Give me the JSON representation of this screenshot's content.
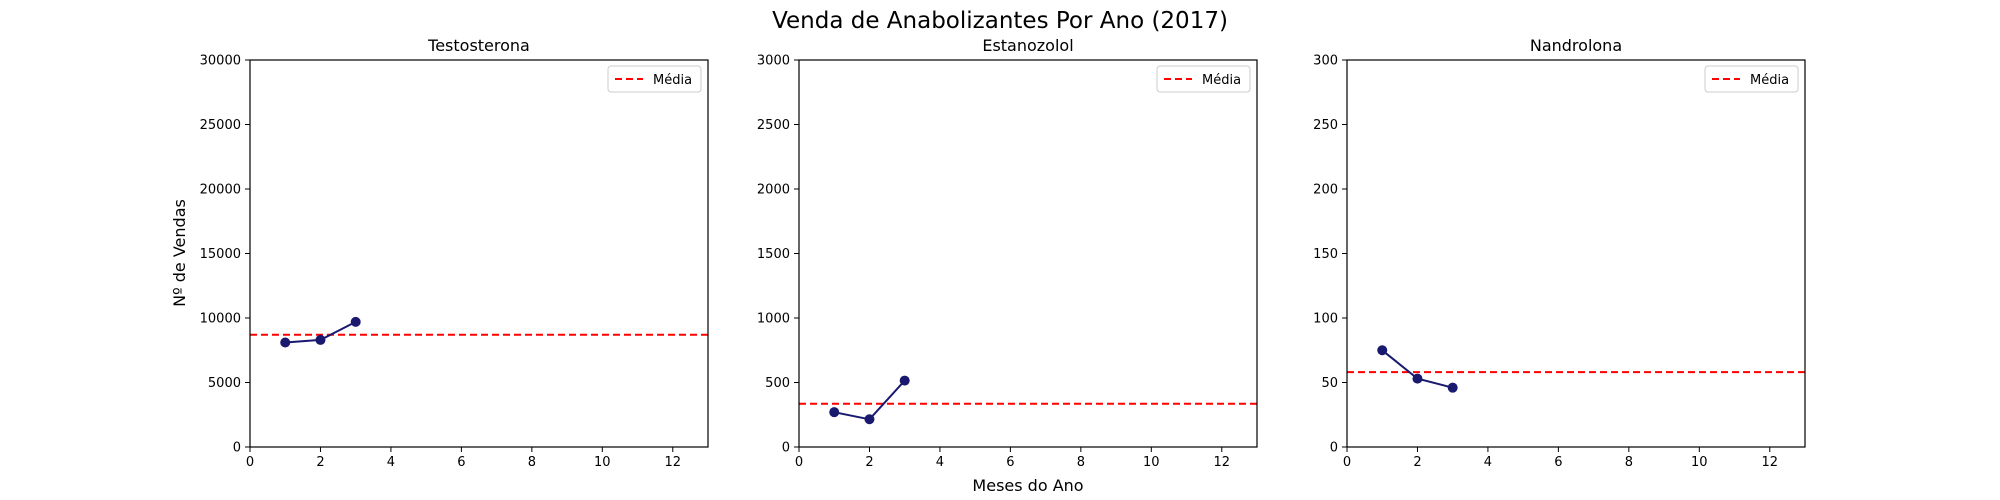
{
  "figure": {
    "suptitle": "Venda de Anabolizantes Por Ano (2017)",
    "xlabel": "Meses do Ano",
    "ylabel": "Nº de Vendas"
  },
  "colors": {
    "line": "#191970",
    "mean": "#ff0000",
    "axes": "#000000"
  },
  "chart_data": [
    {
      "type": "line",
      "title": "Testosterona",
      "x": [
        1,
        2,
        3
      ],
      "values": [
        8100,
        8300,
        9700
      ],
      "mean": 8700,
      "legend": [
        "Média"
      ],
      "legend_position": "top-right",
      "xlim": [
        0,
        13
      ],
      "ylim": [
        0,
        30000
      ],
      "xticks": [
        0,
        2,
        4,
        6,
        8,
        10,
        12
      ],
      "yticks": [
        0,
        5000,
        10000,
        15000,
        20000,
        25000,
        30000
      ],
      "grid": false
    },
    {
      "type": "line",
      "title": "Estanozolol",
      "x": [
        1,
        2,
        3
      ],
      "values": [
        270,
        215,
        515
      ],
      "mean": 335,
      "legend": [
        "Média"
      ],
      "legend_position": "top-right",
      "xlim": [
        0,
        13
      ],
      "ylim": [
        0,
        3000
      ],
      "xticks": [
        0,
        2,
        4,
        6,
        8,
        10,
        12
      ],
      "yticks": [
        0,
        500,
        1000,
        1500,
        2000,
        2500,
        3000
      ],
      "grid": false
    },
    {
      "type": "line",
      "title": "Nandrolona",
      "x": [
        1,
        2,
        3
      ],
      "values": [
        75,
        53,
        46
      ],
      "mean": 58,
      "legend": [
        "Média"
      ],
      "legend_position": "top-right",
      "xlim": [
        0,
        13
      ],
      "ylim": [
        0,
        300
      ],
      "xticks": [
        0,
        2,
        4,
        6,
        8,
        10,
        12
      ],
      "yticks": [
        0,
        50,
        100,
        150,
        200,
        250,
        300
      ],
      "grid": false
    }
  ]
}
